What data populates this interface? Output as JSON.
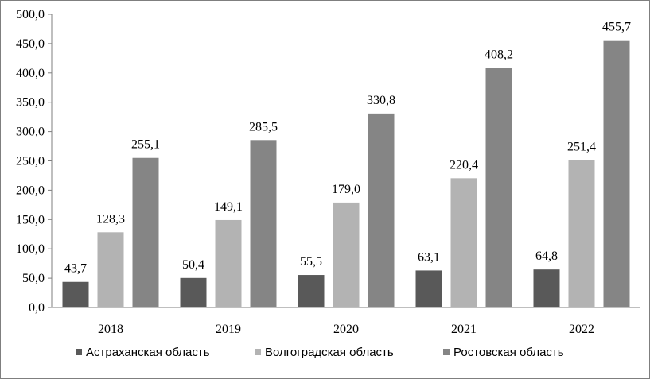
{
  "chart_data": {
    "type": "bar",
    "title": "",
    "xlabel": "",
    "ylabel": "",
    "categories": [
      "2018",
      "2019",
      "2020",
      "2021",
      "2022"
    ],
    "ylim": [
      0,
      500
    ],
    "yticks": [
      "0,0",
      "50,0",
      "100,0",
      "150,0",
      "200,0",
      "250,0",
      "300,0",
      "350,0",
      "400,0",
      "450,0",
      "500,0"
    ],
    "grid": false,
    "legend_position": "bottom",
    "series": [
      {
        "name": "Астраханская область",
        "color": "#595959",
        "values": [
          43.7,
          50.4,
          55.5,
          63.1,
          64.8
        ],
        "labels": [
          "43,7",
          "50,4",
          "55,5",
          "63,1",
          "64,8"
        ]
      },
      {
        "name": "Волгоградская область",
        "color": "#b3b3b3",
        "values": [
          128.3,
          149.1,
          179.0,
          220.4,
          251.4
        ],
        "labels": [
          "128,3",
          "149,1",
          "179,0",
          "220,4",
          "251,4"
        ]
      },
      {
        "name": "Ростовская область",
        "color": "#858585",
        "values": [
          255.1,
          285.5,
          330.8,
          408.2,
          455.7
        ],
        "labels": [
          "255,1",
          "285,5",
          "330,8",
          "408,2",
          "455,7"
        ]
      }
    ]
  }
}
